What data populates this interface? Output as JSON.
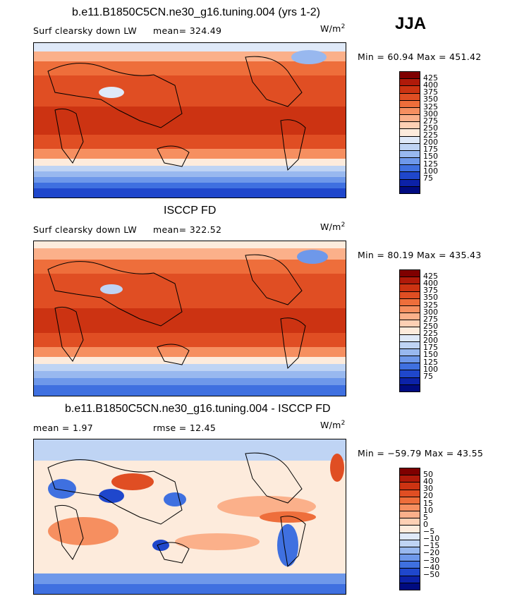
{
  "season": "JJA",
  "panels": [
    {
      "title": "b.e11.B1850C5CN.ne30_g16.tuning.004 (yrs 1-2)",
      "variable": "Surf clearsky down LW",
      "stat": "mean= 324.49",
      "units": "W/m",
      "units_exp": "2",
      "minmax": "Min =  60.94 Max = 451.42"
    },
    {
      "title": "ISCCP FD",
      "variable": "Surf clearsky down LW",
      "stat": "mean= 322.52",
      "units": "W/m",
      "units_exp": "2",
      "minmax": "Min =  80.19 Max = 435.43"
    },
    {
      "title": "b.e11.B1850C5CN.ne30_g16.tuning.004 - ISCCP FD",
      "variable": "mean =   1.97",
      "stat": "rmse =  12.45",
      "units": "W/m",
      "units_exp": "2",
      "minmax": "Min = −59.79 Max =  43.55"
    }
  ],
  "colorbars": {
    "absolute": {
      "colors": [
        "#7f0000",
        "#b01a0a",
        "#cc3312",
        "#e04e23",
        "#ee6e3b",
        "#f68f60",
        "#fbb08a",
        "#fdd0b4",
        "#fdebdc",
        "#dfe9f8",
        "#bfd4f4",
        "#98b8ef",
        "#6e98ea",
        "#3f70e0",
        "#1f47cc",
        "#0c22a8",
        "#000b80"
      ],
      "ticks": [
        "425",
        "400",
        "375",
        "350",
        "325",
        "300",
        "275",
        "250",
        "225",
        "200",
        "175",
        "150",
        "125",
        "100",
        "75"
      ]
    },
    "difference": {
      "colors": [
        "#7f0000",
        "#b01a0a",
        "#cc3312",
        "#e04e23",
        "#ee6e3b",
        "#f68f60",
        "#fbb08a",
        "#fdd0b4",
        "#fdebdc",
        "#dfe9f8",
        "#bfd4f4",
        "#98b8ef",
        "#6e98ea",
        "#3f70e0",
        "#1f47cc",
        "#0c22a8",
        "#000b80"
      ],
      "ticks": [
        "50",
        "40",
        "30",
        "20",
        "15",
        "10",
        "5",
        "0",
        "−5",
        "−10",
        "−15",
        "−20",
        "−30",
        "−40",
        "−50"
      ]
    }
  }
}
